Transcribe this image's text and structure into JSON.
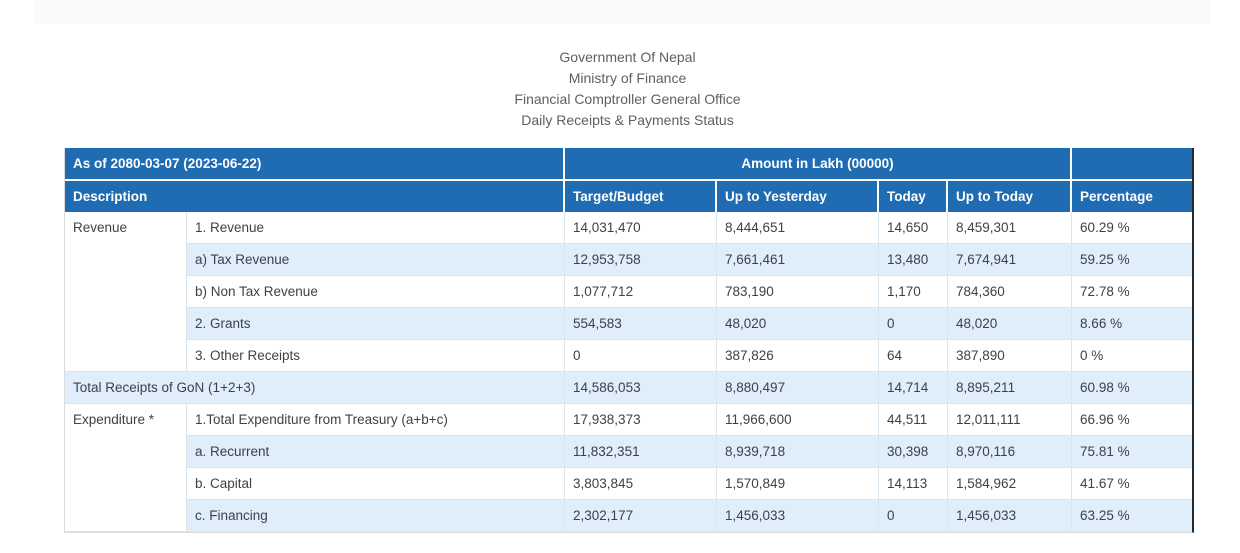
{
  "colors": {
    "header_blue": "#1f6cb2",
    "stripe_blue": "#e0edfa",
    "inner_border": "#d8e4ee",
    "outer_border_light": "#dcdcdc",
    "outer_border_dark_right": "#24272b",
    "top_bar_gray": "#fafafa",
    "title_text": "#5c6166",
    "body_text": "#3d4246"
  },
  "org_header": {
    "lines": [
      "Government Of Nepal",
      "Ministry of Finance",
      "Financial Comptroller General Office",
      "Daily Receipts & Payments Status"
    ]
  },
  "table": {
    "as_of": "As of 2080-03-07 (2023-06-22)",
    "amount_header": "Amount in Lakh (00000)",
    "columns": [
      "Description",
      "Target/Budget",
      "Up to Yesterday",
      "Today",
      "Up to Today",
      "Percentage"
    ],
    "rows": [
      {
        "group": "Revenue",
        "group_rowspan": 5,
        "desc": "1. Revenue",
        "values": [
          "14,031,470",
          "8,444,651",
          "14,650",
          "8,459,301",
          "60.29 %"
        ]
      },
      {
        "desc": "a) Tax Revenue",
        "values": [
          "12,953,758",
          "7,661,461",
          "13,480",
          "7,674,941",
          "59.25 %"
        ]
      },
      {
        "desc": "b) Non Tax Revenue",
        "values": [
          "1,077,712",
          "783,190",
          "1,170",
          "784,360",
          "72.78 %"
        ]
      },
      {
        "desc": "2. Grants",
        "values": [
          "554,583",
          "48,020",
          "0",
          "48,020",
          "8.66 %"
        ]
      },
      {
        "desc": "3. Other Receipts",
        "values": [
          "0",
          "387,826",
          "64",
          "387,890",
          "0 %"
        ]
      },
      {
        "full_width": true,
        "desc": "Total Receipts of GoN (1+2+3)",
        "values": [
          "14,586,053",
          "8,880,497",
          "14,714",
          "8,895,211",
          "60.98 %"
        ]
      },
      {
        "group": "Expenditure *",
        "group_rowspan": 4,
        "desc": "1.Total Expenditure from Treasury (a+b+c)",
        "values": [
          "17,938,373",
          "11,966,600",
          "44,511",
          "12,011,111",
          "66.96 %"
        ]
      },
      {
        "desc": "a. Recurrent",
        "values": [
          "11,832,351",
          "8,939,718",
          "30,398",
          "8,970,116",
          "75.81 %"
        ]
      },
      {
        "desc": "b. Capital",
        "values": [
          "3,803,845",
          "1,570,849",
          "14,113",
          "1,584,962",
          "41.67 %"
        ]
      },
      {
        "desc": "c. Financing",
        "values": [
          "2,302,177",
          "1,456,033",
          "0",
          "1,456,033",
          "63.25 %"
        ]
      }
    ]
  }
}
